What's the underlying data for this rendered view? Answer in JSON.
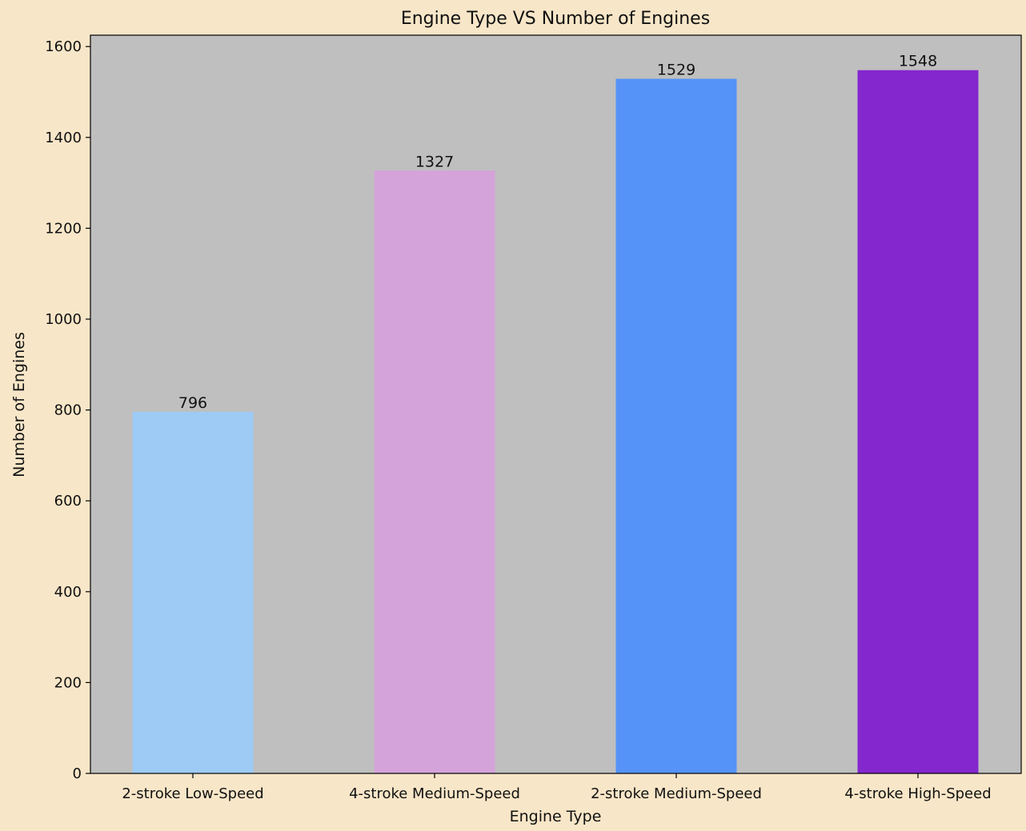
{
  "chart_data": {
    "type": "bar",
    "title": "Engine Type VS Number of Engines",
    "xlabel": "Engine Type",
    "ylabel": "Number of Engines",
    "categories": [
      "2-stroke Low-Speed",
      "4-stroke Medium-Speed",
      "2-stroke Medium-Speed",
      "4-stroke High-Speed"
    ],
    "values": [
      796,
      1327,
      1529,
      1548
    ],
    "data_labels": [
      "796",
      "1327",
      "1529",
      "1548"
    ],
    "colors": [
      "#9ecbf6",
      "#d4a3d9",
      "#5593f8",
      "#8427ce"
    ],
    "ylim": [
      0,
      1625
    ],
    "yticks": [
      0,
      200,
      400,
      600,
      800,
      1000,
      1200,
      1400,
      1600
    ],
    "grid": false,
    "plot_background": "#bfbfbf",
    "figure_background": "#f8e6c8"
  }
}
